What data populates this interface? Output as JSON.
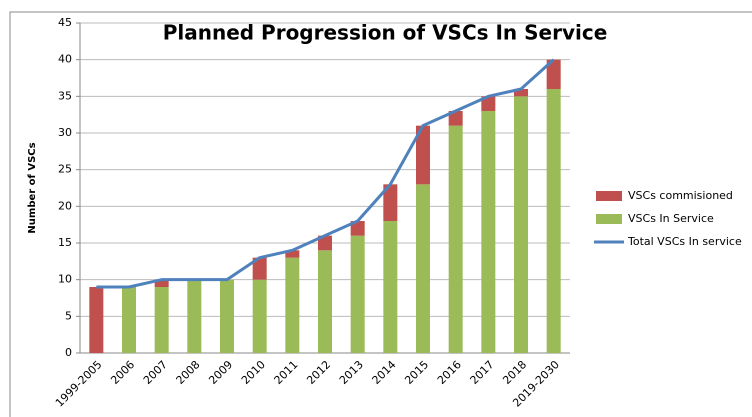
{
  "chart_data": {
    "type": "bar",
    "stacked": true,
    "title": "Planned Progression of VSCs In Service",
    "y_label": "Number of VSCs",
    "categories": [
      "1999-2005",
      "2006",
      "2007",
      "2008",
      "2009",
      "2010",
      "2011",
      "2012",
      "2013",
      "2014",
      "2015",
      "2016",
      "2017",
      "2018",
      "2019-2030"
    ],
    "series": [
      {
        "name": "VSCs commisioned",
        "type": "bar",
        "color": "#c0504d",
        "values": [
          9,
          0,
          1,
          0,
          0,
          3,
          1,
          2,
          2,
          5,
          8,
          2,
          2,
          1,
          4
        ]
      },
      {
        "name": "VSCs In Service",
        "type": "bar",
        "color": "#9bbb59",
        "values": [
          0,
          9,
          9,
          10,
          10,
          10,
          13,
          14,
          16,
          18,
          23,
          31,
          33,
          35,
          36
        ]
      },
      {
        "name": "Total VSCs In service",
        "type": "line",
        "color": "#4f81bd",
        "values": [
          9,
          9,
          10,
          10,
          10,
          13,
          14,
          16,
          18,
          23,
          31,
          33,
          35,
          36,
          40
        ]
      }
    ],
    "ylim": [
      0,
      45
    ],
    "yticks": [
      0,
      5,
      10,
      15,
      20,
      25,
      30,
      35,
      40,
      45
    ],
    "grid": true,
    "legend": "right"
  }
}
